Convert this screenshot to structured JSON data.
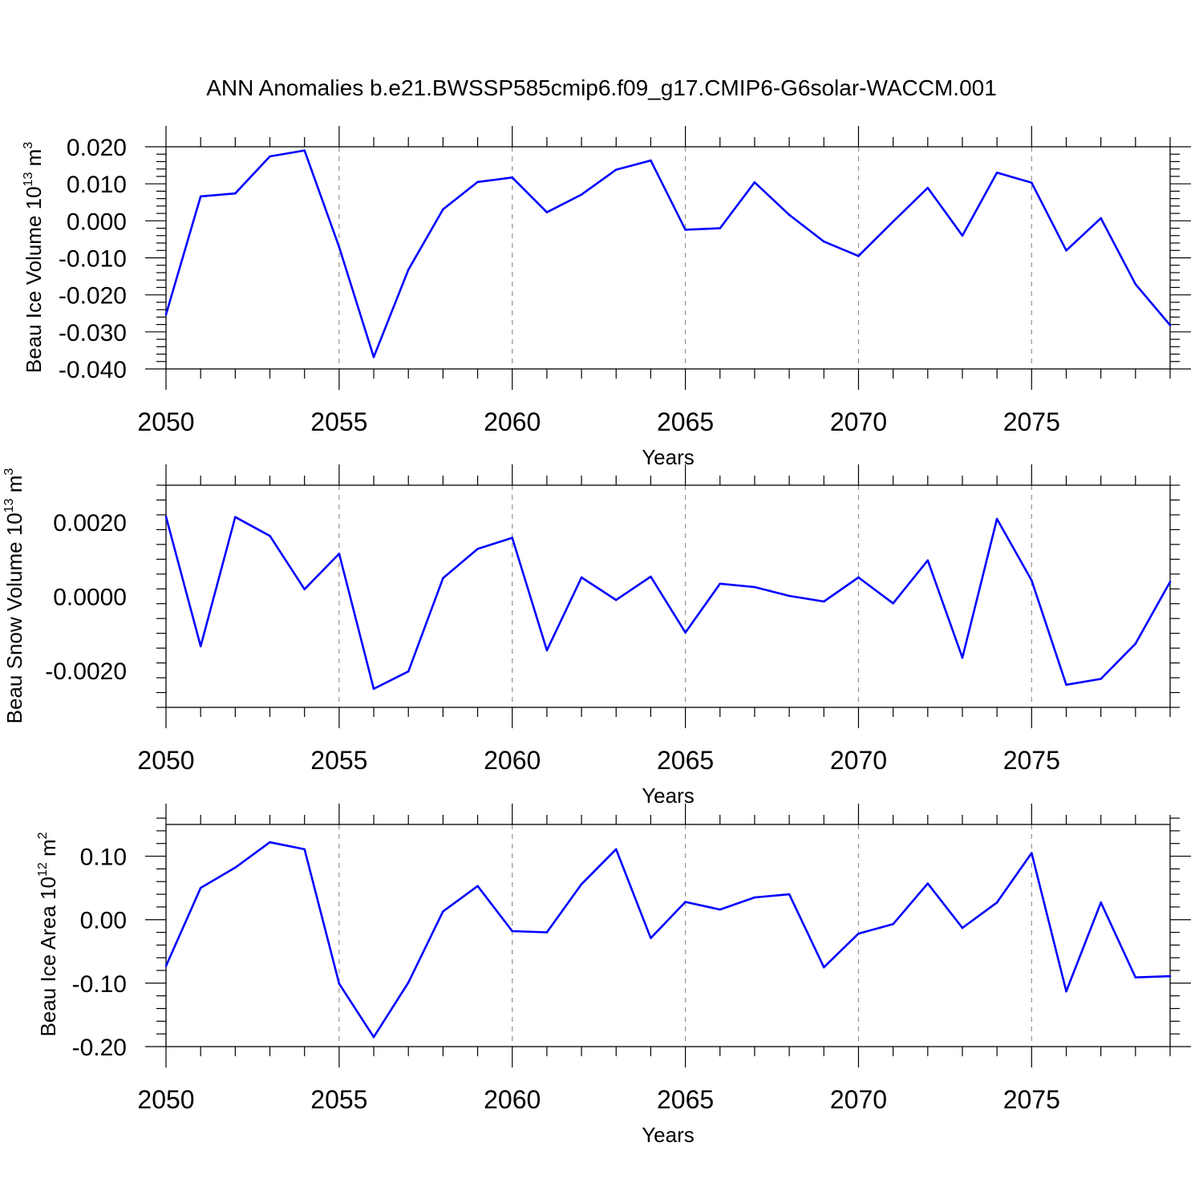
{
  "title": "ANN Anomalies b.e21.BWSSP585cmip6.f09_g17.CMIP6-G6solar-WACCM.001",
  "colors": {
    "series": "#0000ff",
    "grid": "#999999",
    "axis": "#000000"
  },
  "chart_data": [
    {
      "type": "line",
      "ylabel_main": "Beau Ice Volume 10",
      "ylabel_sup": "13",
      "ylabel_unit": "m",
      "ylabel_unit_sup": "3",
      "xlabel": "Years",
      "xlim": [
        2050,
        2079
      ],
      "ylim": [
        -0.04,
        0.02
      ],
      "yticks": [
        -0.04,
        -0.03,
        -0.02,
        -0.01,
        0.0,
        0.01,
        0.02
      ],
      "ytick_labels": [
        "-0.040",
        "-0.030",
        "-0.020",
        "-0.010",
        "0.000",
        "0.010",
        "0.020"
      ],
      "xticks": [
        2050,
        2055,
        2060,
        2065,
        2070,
        2075
      ],
      "xtick_labels": [
        "2050",
        "2055",
        "2060",
        "2065",
        "2070",
        "2075"
      ],
      "grid": "vertical dashed at major x ticks",
      "x": [
        2050,
        2051,
        2052,
        2053,
        2054,
        2055,
        2056,
        2057,
        2058,
        2059,
        2060,
        2061,
        2062,
        2063,
        2064,
        2065,
        2066,
        2067,
        2068,
        2069,
        2070,
        2071,
        2072,
        2073,
        2074,
        2075,
        2076,
        2077,
        2078,
        2079
      ],
      "values": [
        -0.0253,
        0.0066,
        0.0074,
        0.0174,
        0.019,
        -0.0071,
        -0.0368,
        -0.0132,
        0.0031,
        0.0105,
        0.0117,
        0.0023,
        0.0071,
        0.0138,
        0.0163,
        -0.0024,
        -0.002,
        0.0104,
        0.0016,
        -0.0056,
        -0.0095,
        -0.0002,
        0.0089,
        -0.004,
        0.013,
        0.0103,
        -0.008,
        0.0007,
        -0.0171,
        -0.0282
      ]
    },
    {
      "type": "line",
      "ylabel_main": "Beau Snow Volume 10",
      "ylabel_sup": "13",
      "ylabel_unit": "m",
      "ylabel_unit_sup": "3",
      "xlabel": "Years",
      "xlim": [
        2050,
        2079
      ],
      "ylim": [
        -0.003,
        0.003
      ],
      "yticks": [
        -0.002,
        0.0,
        0.002
      ],
      "ytick_labels": [
        "-0.0020",
        "0.0000",
        "0.0020"
      ],
      "xticks": [
        2050,
        2055,
        2060,
        2065,
        2070,
        2075
      ],
      "xtick_labels": [
        "2050",
        "2055",
        "2060",
        "2065",
        "2070",
        "2075"
      ],
      "grid": "vertical dashed at major x ticks",
      "x": [
        2050,
        2051,
        2052,
        2053,
        2054,
        2055,
        2056,
        2057,
        2058,
        2059,
        2060,
        2061,
        2062,
        2063,
        2064,
        2065,
        2066,
        2067,
        2068,
        2069,
        2070,
        2071,
        2072,
        2073,
        2074,
        2075,
        2076,
        2077,
        2078,
        2079
      ],
      "values": [
        0.00215,
        -0.00135,
        0.00214,
        0.00163,
        0.00019,
        0.00115,
        -0.0025,
        -0.00203,
        0.00049,
        0.00128,
        0.00158,
        -0.00146,
        0.00051,
        -0.0001,
        0.00053,
        -0.00098,
        0.00034,
        0.00025,
        1e-05,
        -0.00014,
        0.00051,
        -0.00019,
        0.00097,
        -0.00166,
        0.00209,
        0.00043,
        -0.00239,
        -0.00223,
        -0.00128,
        0.00039
      ]
    },
    {
      "type": "line",
      "ylabel_main": "Beau Ice Area 10",
      "ylabel_sup": "12",
      "ylabel_unit": "m",
      "ylabel_unit_sup": "2",
      "xlabel": "Years",
      "xlim": [
        2050,
        2079
      ],
      "ylim": [
        -0.2,
        0.15
      ],
      "yticks": [
        -0.2,
        -0.1,
        0.0,
        0.1
      ],
      "ytick_labels": [
        "-0.20",
        "-0.10",
        "0.00",
        "0.10"
      ],
      "xticks": [
        2050,
        2055,
        2060,
        2065,
        2070,
        2075
      ],
      "xtick_labels": [
        "2050",
        "2055",
        "2060",
        "2065",
        "2070",
        "2075"
      ],
      "grid": "vertical dashed at major x ticks",
      "x": [
        2050,
        2051,
        2052,
        2053,
        2054,
        2055,
        2056,
        2057,
        2058,
        2059,
        2060,
        2061,
        2062,
        2063,
        2064,
        2065,
        2066,
        2067,
        2068,
        2069,
        2070,
        2071,
        2072,
        2073,
        2074,
        2075,
        2076,
        2077,
        2078,
        2079
      ],
      "values": [
        -0.073,
        0.05,
        0.082,
        0.122,
        0.111,
        -0.101,
        -0.185,
        -0.099,
        0.013,
        0.053,
        -0.018,
        -0.02,
        0.056,
        0.111,
        -0.029,
        0.028,
        0.016,
        0.035,
        0.04,
        -0.075,
        -0.022,
        -0.007,
        0.057,
        -0.013,
        0.027,
        0.105,
        -0.113,
        0.027,
        -0.091,
        -0.089
      ]
    }
  ]
}
